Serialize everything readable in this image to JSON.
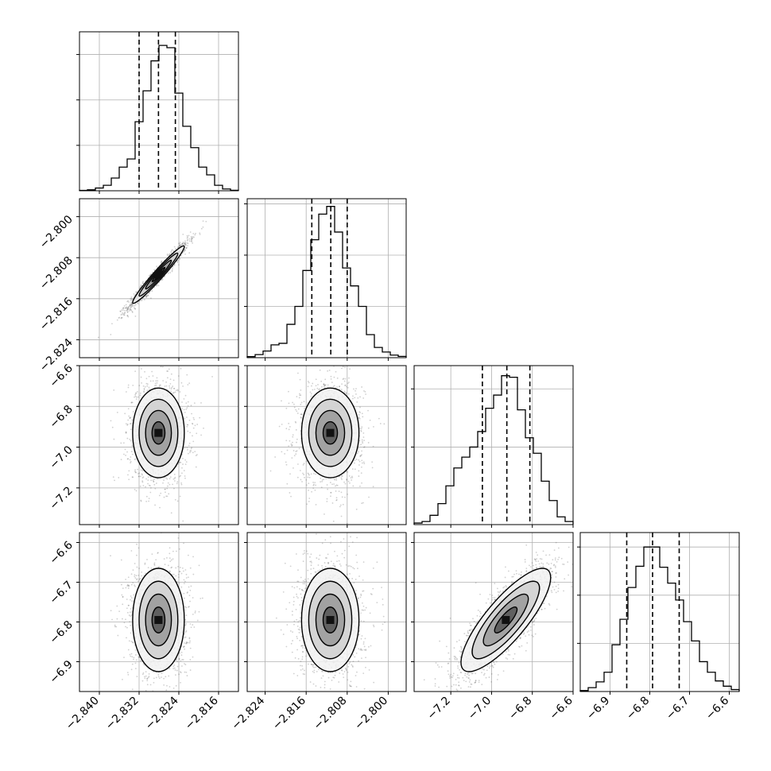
{
  "chart_data": {
    "type": "corner",
    "title": "",
    "parameters": [
      {
        "range": [
          -2.844,
          -2.812
        ],
        "ticks": [
          "−2.840",
          "−2.832",
          "−2.824",
          "−2.816"
        ],
        "tick_values": [
          -2.84,
          -2.832,
          -2.824,
          -2.816
        ],
        "quantiles": [
          -2.832,
          -2.8281,
          -2.8247
        ],
        "mean": -2.8281,
        "sd": 0.0026
      },
      {
        "range": [
          -2.8275,
          -2.7965
        ],
        "ticks": [
          "−2.824",
          "−2.816",
          "−2.808",
          "−2.800"
        ],
        "tick_values": [
          -2.824,
          -2.816,
          -2.808,
          -2.8
        ],
        "quantiles": [
          -2.8149,
          -2.8112,
          -2.808
        ],
        "mean": -2.8113,
        "sd": 0.0028
      },
      {
        "range": [
          -7.38,
          -6.6
        ],
        "ticks": [
          "−7.2",
          "−7.0",
          "−6.8",
          "−6.6"
        ],
        "tick_values": [
          -7.2,
          -7.0,
          -6.8,
          -6.6
        ],
        "quantiles": [
          -7.045,
          -6.925,
          -6.812
        ],
        "mean": -6.93,
        "sd": 0.11
      },
      {
        "range": [
          -6.975,
          -6.575
        ],
        "ticks": [
          "−6.9",
          "−6.8",
          "−6.7",
          "−6.6"
        ],
        "tick_values": [
          -6.9,
          -6.8,
          -6.7,
          -6.6
        ],
        "quantiles": [
          -6.858,
          -6.793,
          -6.726
        ],
        "mean": -6.795,
        "sd": 0.065
      }
    ],
    "histograms": [
      {
        "param": 0,
        "ymax": 3500,
        "yticks": [
          1000,
          2000,
          3000
        ],
        "counts": [
          8,
          21,
          60,
          120,
          280,
          520,
          700,
          1520,
          2200,
          2860,
          3200,
          3150,
          2150,
          1420,
          950,
          520,
          350,
          120,
          40,
          10
        ]
      },
      {
        "param": 1,
        "ymax": 3100,
        "yticks": [
          1000,
          2000,
          3000
        ],
        "counts": [
          20,
          60,
          130,
          250,
          280,
          650,
          1000,
          1700,
          2300,
          2800,
          2950,
          2450,
          1750,
          1400,
          1000,
          450,
          200,
          110,
          50,
          25
        ]
      },
      {
        "param": 2,
        "ymax": 2050,
        "yticks": [
          1000,
          1750
        ],
        "counts": [
          20,
          40,
          120,
          270,
          500,
          730,
          870,
          1000,
          1200,
          1500,
          1670,
          1920,
          1900,
          1480,
          1120,
          920,
          560,
          310,
          100,
          40
        ]
      },
      {
        "param": 3,
        "ymax": 3300,
        "yticks": [
          1000,
          2000,
          3000
        ],
        "counts": [
          20,
          80,
          200,
          400,
          970,
          1500,
          2160,
          2600,
          3000,
          3000,
          2580,
          2250,
          1900,
          1450,
          1050,
          620,
          400,
          220,
          110,
          40
        ]
      }
    ],
    "pairs": [
      {
        "x": 0,
        "y": 1,
        "correlation": 0.97
      },
      {
        "x": 0,
        "y": 2,
        "correlation": 0.0
      },
      {
        "x": 1,
        "y": 2,
        "correlation": 0.0
      },
      {
        "x": 0,
        "y": 3,
        "correlation": 0.0
      },
      {
        "x": 1,
        "y": 3,
        "correlation": 0.0
      },
      {
        "x": 2,
        "y": 3,
        "correlation": 0.82
      }
    ],
    "contour_levels_sigma": [
      0.5,
      1.0,
      1.5,
      2.0
    ],
    "grid": true,
    "colors": {
      "line": "#000000",
      "grid": "#b0b0b0",
      "points": "#555555"
    }
  }
}
